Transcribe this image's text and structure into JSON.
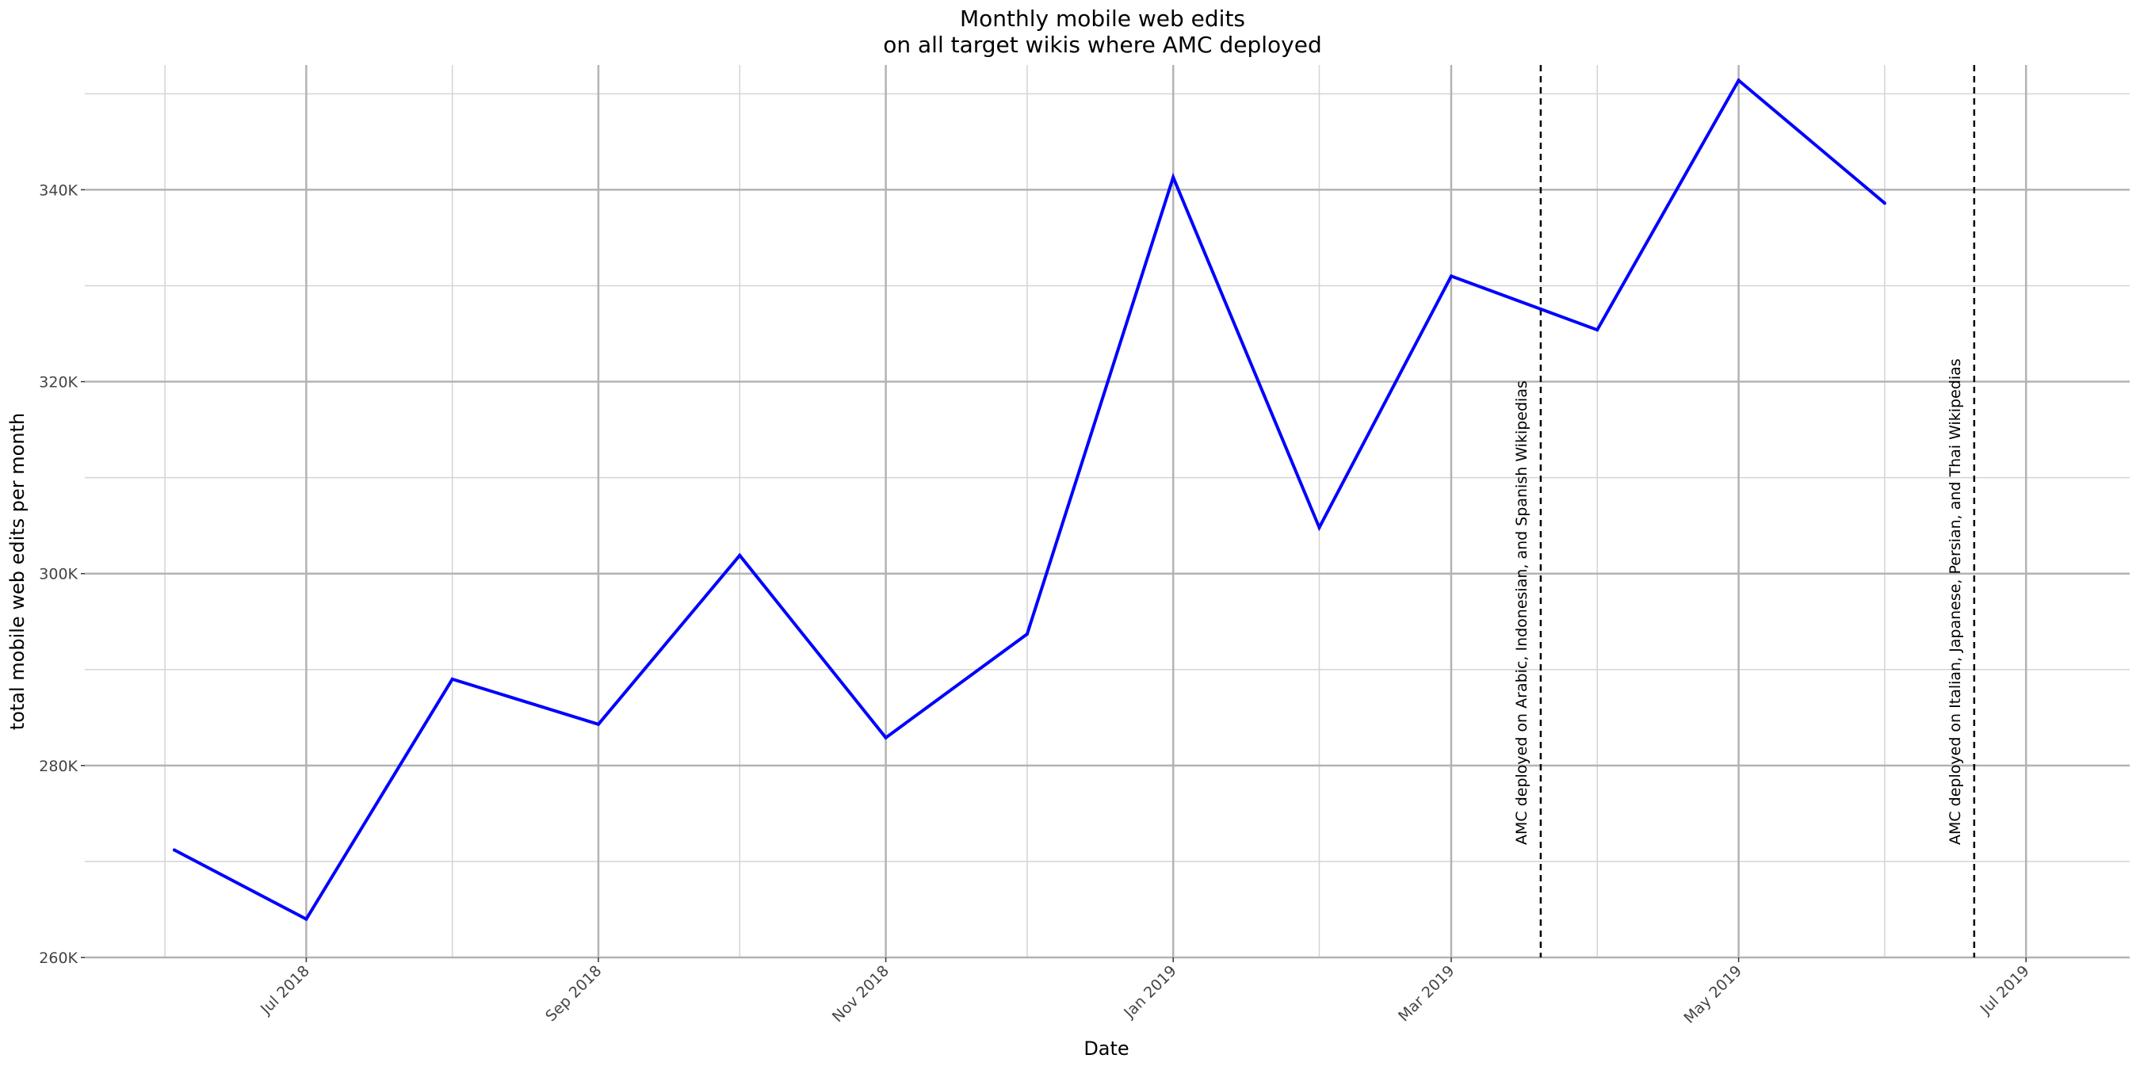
{
  "chart_data": {
    "type": "line",
    "title": "Monthly mobile web edits",
    "subtitle": "on all target wikis where AMC deployed",
    "xlabel": "Date",
    "ylabel": "total mobile web edits per month",
    "xlim": [
      "2018-05-15",
      "2019-07-23"
    ],
    "ylim": [
      260000,
      353000
    ],
    "x_ticks": [
      {
        "date": "2018-07-01",
        "label": "Jul 2018"
      },
      {
        "date": "2018-09-01",
        "label": "Sep 2018"
      },
      {
        "date": "2018-11-01",
        "label": "Nov 2018"
      },
      {
        "date": "2019-01-01",
        "label": "Jan 2019"
      },
      {
        "date": "2019-03-01",
        "label": "Mar 2019"
      },
      {
        "date": "2019-05-01",
        "label": "May 2019"
      },
      {
        "date": "2019-07-01",
        "label": "Jul 2019"
      }
    ],
    "x_minor_ticks": [
      "2018-06-01",
      "2018-08-01",
      "2018-10-01",
      "2018-12-01",
      "2019-02-01",
      "2019-04-01",
      "2019-06-01"
    ],
    "y_ticks": [
      {
        "value": 260000,
        "label": "260K"
      },
      {
        "value": 280000,
        "label": "280K"
      },
      {
        "value": 300000,
        "label": "300K"
      },
      {
        "value": 320000,
        "label": "320K"
      },
      {
        "value": 340000,
        "label": "340K"
      }
    ],
    "y_minor_ticks": [
      270000,
      290000,
      310000,
      330000,
      350000
    ],
    "grid": true,
    "series": [
      {
        "color": "#0000ff",
        "points": [
          {
            "x": "2018-06-03",
            "y": 271200
          },
          {
            "x": "2018-07-01",
            "y": 264000
          },
          {
            "x": "2018-08-01",
            "y": 289000
          },
          {
            "x": "2018-09-01",
            "y": 284300
          },
          {
            "x": "2018-10-01",
            "y": 301900
          },
          {
            "x": "2018-11-01",
            "y": 282900
          },
          {
            "x": "2018-12-01",
            "y": 293700
          },
          {
            "x": "2019-01-01",
            "y": 341300
          },
          {
            "x": "2019-02-01",
            "y": 304800
          },
          {
            "x": "2019-03-01",
            "y": 331000
          },
          {
            "x": "2019-04-01",
            "y": 325400
          },
          {
            "x": "2019-05-01",
            "y": 351400
          },
          {
            "x": "2019-06-01",
            "y": 338600
          }
        ]
      }
    ],
    "annotations": [
      {
        "date": "2019-03-20",
        "text": "AMC deployed on Arabic, Indonesian, and Spanish Wikipedias"
      },
      {
        "date": "2019-06-20",
        "text": "AMC deployed on Italian, Japanese, Persian, and Thai Wikipedias"
      }
    ]
  }
}
